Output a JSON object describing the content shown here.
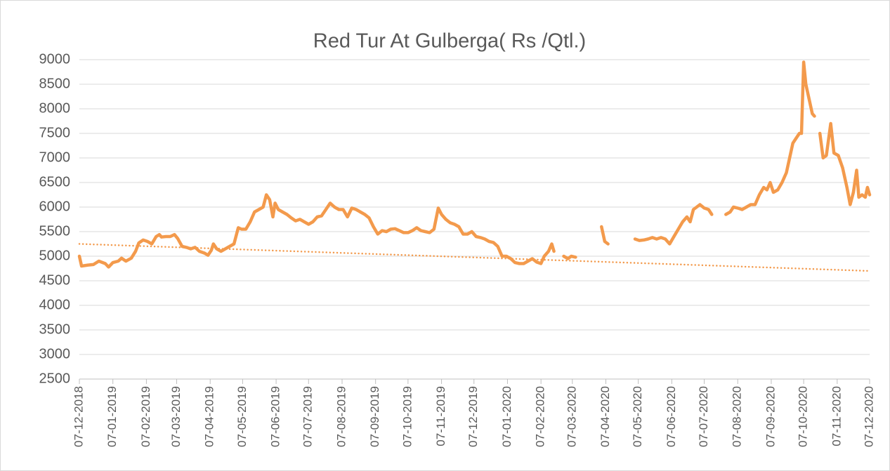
{
  "chart_data": {
    "type": "line",
    "title": "Red Tur At Gulberga( Rs /Qtl.)",
    "x": [
      "07-12-2018",
      "09-12-2018",
      "15-12-2018",
      "20-12-2018",
      "25-12-2018",
      "31-12-2018",
      "03-01-2019",
      "07-01-2019",
      "12-01-2019",
      "15-01-2019",
      "19-01-2019",
      "24-01-2019",
      "28-01-2019",
      "31-01-2019",
      "04-02-2019",
      "08-02-2019",
      "12-02-2019",
      "16-02-2019",
      "19-02-2019",
      "21-02-2019",
      "25-02-2019",
      "01-03-2019",
      "05-03-2019",
      "08-03-2019",
      "12-03-2019",
      "16-03-2019",
      "20-03-2019",
      "24-03-2019",
      "28-03-2019",
      "02-04-2019",
      "05-04-2019",
      "08-04-2019",
      "10-04-2019",
      "13-04-2019",
      "17-04-2019",
      "21-04-2019",
      "25-04-2019",
      "29-04-2019",
      "03-05-2019",
      "06-05-2019",
      "10-05-2019",
      "14-05-2019",
      "18-05-2019",
      "22-05-2019",
      "26-05-2019",
      "29-05-2019",
      "01-06-2019",
      "04-06-2019",
      "06-06-2019",
      "09-06-2019",
      "13-06-2019",
      "17-06-2019",
      "21-06-2019",
      "25-06-2019",
      "29-06-2019",
      "03-07-2019",
      "07-07-2019",
      "11-07-2019",
      "15-07-2019",
      "19-07-2019",
      "23-07-2019",
      "27-07-2019",
      "31-07-2019",
      "04-08-2019",
      "08-08-2019",
      "12-08-2019",
      "16-08-2019",
      "20-08-2019",
      "24-08-2019",
      "28-08-2019",
      "01-09-2019",
      "05-09-2019",
      "09-09-2019",
      "13-09-2019",
      "17-09-2019",
      "21-09-2019",
      "25-09-2019",
      "29-09-2019",
      "03-10-2019",
      "07-10-2019",
      "11-10-2019",
      "15-10-2019",
      "19-10-2019",
      "23-10-2019",
      "27-10-2019",
      "31-10-2019",
      "04-11-2019",
      "07-11-2019",
      "11-11-2019",
      "15-11-2019",
      "19-11-2019",
      "23-11-2019",
      "27-11-2019",
      "01-12-2019",
      "05-12-2019",
      "09-12-2019",
      "13-12-2019",
      "17-12-2019",
      "21-12-2019",
      "25-12-2019",
      "29-12-2019",
      "02-01-2020",
      "06-01-2020",
      "10-01-2020",
      "14-01-2020",
      "18-01-2020",
      "22-01-2020",
      "26-01-2020",
      "30-01-2020",
      "03-02-2020",
      "07-02-2020",
      "10-02-2020",
      "14-02-2020",
      "17-02-2020",
      "19-02-2020",
      "22-02-2020",
      "28-02-2020",
      "03-03-2020",
      "06-03-2020",
      "10-03-2020",
      "14-03-2020",
      "03-04-2020",
      "06-04-2020",
      "09-04-2020",
      "13-04-2020",
      "04-05-2020",
      "08-05-2020",
      "12-05-2020",
      "16-05-2020",
      "20-05-2020",
      "24-05-2020",
      "28-05-2020",
      "01-06-2020",
      "05-06-2020",
      "09-06-2020",
      "13-06-2020",
      "17-06-2020",
      "21-06-2020",
      "24-06-2020",
      "27-06-2020",
      "30-06-2020",
      "03-07-2020",
      "07-07-2020",
      "11-07-2020",
      "14-07-2020",
      "18-07-2020",
      "27-07-2020",
      "31-07-2020",
      "03-08-2020",
      "07-08-2020",
      "11-08-2020",
      "15-08-2020",
      "19-08-2020",
      "23-08-2020",
      "27-08-2020",
      "31-08-2020",
      "03-09-2020",
      "06-09-2020",
      "09-09-2020",
      "13-09-2020",
      "17-09-2020",
      "21-09-2020",
      "24-09-2020",
      "27-09-2020",
      "30-09-2020",
      "03-10-2020",
      "05-10-2020",
      "07-10-2020",
      "09-10-2020",
      "12-10-2020",
      "15-10-2020",
      "17-10-2020",
      "20-10-2020",
      "22-10-2020",
      "25-10-2020",
      "28-10-2020",
      "01-11-2020",
      "04-11-2020",
      "08-11-2020",
      "12-11-2020",
      "16-11-2020",
      "19-11-2020",
      "22-11-2020",
      "25-11-2020",
      "27-11-2020",
      "30-11-2020",
      "03-12-2020",
      "05-12-2020",
      "07-12-2020"
    ],
    "series": [
      {
        "color": "#f39a4c",
        "values": [
          5000,
          4800,
          4820,
          4830,
          4900,
          4850,
          4780,
          4870,
          4900,
          4960,
          4900,
          4960,
          5100,
          5270,
          5330,
          5300,
          5250,
          5400,
          5440,
          5390,
          5400,
          5400,
          5440,
          5360,
          5200,
          5180,
          5150,
          5180,
          5100,
          5060,
          5020,
          5120,
          5250,
          5150,
          5100,
          5150,
          5200,
          5250,
          5580,
          5550,
          5550,
          5700,
          5900,
          5950,
          6000,
          6250,
          6150,
          5800,
          6080,
          5950,
          5900,
          5850,
          5780,
          5720,
          5750,
          5700,
          5650,
          5700,
          5800,
          5820,
          5950,
          6080,
          6000,
          5950,
          5950,
          5800,
          5980,
          5950,
          5900,
          5850,
          5780,
          5600,
          5450,
          5520,
          5500,
          5550,
          5560,
          5520,
          5480,
          5480,
          5520,
          5580,
          5520,
          5500,
          5480,
          5550,
          5980,
          5850,
          5750,
          5680,
          5650,
          5600,
          5450,
          5450,
          5500,
          5400,
          5380,
          5350,
          5300,
          5280,
          5200,
          5000,
          5000,
          4950,
          4870,
          4850,
          4850,
          4900,
          4950,
          4880,
          4850,
          5000,
          5100,
          5250,
          5100,
          null,
          5000,
          4950,
          5000,
          4980,
          null,
          5600,
          5300,
          5250,
          null,
          5350,
          5320,
          5330,
          5350,
          5380,
          5350,
          5380,
          5350,
          5250,
          5400,
          5550,
          5700,
          5800,
          5700,
          5950,
          6000,
          6050,
          5980,
          5950,
          5850,
          null,
          5850,
          5900,
          6000,
          5980,
          5950,
          6000,
          6050,
          6050,
          6250,
          6400,
          6350,
          6500,
          6300,
          6350,
          6500,
          6700,
          7000,
          7300,
          7400,
          7500,
          7500,
          8950,
          8500,
          8200,
          7900,
          7850,
          null,
          7500,
          7000,
          7050,
          7700,
          7100,
          7050,
          6800,
          6400,
          6050,
          6300,
          6750,
          6200,
          6250,
          6200,
          6400,
          6250
        ]
      }
    ],
    "trendline": {
      "x": [
        "07-12-2018",
        "07-12-2020"
      ],
      "values": [
        5250,
        4700
      ],
      "color": "#f39a4c",
      "style": "dotted"
    },
    "xlim": [
      "07-12-2018",
      "07-12-2020"
    ],
    "xticks": [
      "07-12-2018",
      "07-01-2019",
      "07-02-2019",
      "07-03-2019",
      "07-04-2019",
      "07-05-2019",
      "07-06-2019",
      "07-07-2019",
      "07-08-2019",
      "07-09-2019",
      "07-10-2019",
      "07-11-2019",
      "07-12-2019",
      "07-01-2020",
      "07-02-2020",
      "07-03-2020",
      "07-04-2020",
      "07-05-2020",
      "07-06-2020",
      "07-07-2020",
      "07-08-2020",
      "07-09-2020",
      "07-10-2020",
      "07-11-2020",
      "07-12-2020"
    ],
    "ylim": [
      2500,
      9000
    ],
    "yticks": [
      2500,
      3000,
      3500,
      4000,
      4500,
      5000,
      5500,
      6000,
      6500,
      7000,
      7500,
      8000,
      8500,
      9000
    ],
    "grid": true
  }
}
